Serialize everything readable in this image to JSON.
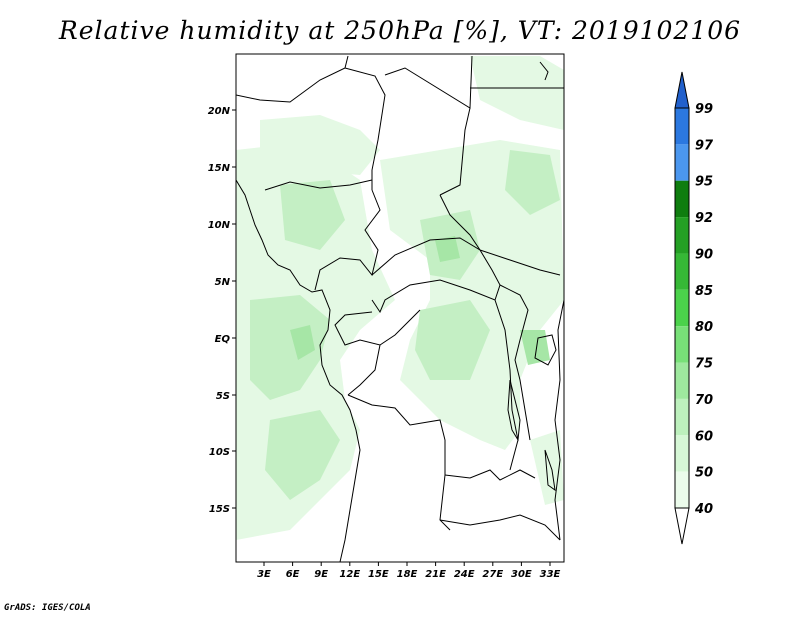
{
  "title": "Relative humidity at 250hPa [%], VT: 2019102106",
  "credit": "GrADS: IGES/COLA",
  "map": {
    "lat_labels": [
      "20N",
      "15N",
      "10N",
      "5N",
      "EQ",
      "5S",
      "10S",
      "15S"
    ],
    "lon_labels": [
      "3E",
      "6E",
      "9E",
      "12E",
      "15E",
      "18E",
      "21E",
      "24E",
      "27E",
      "30E",
      "33E"
    ]
  },
  "colorbar": {
    "levels": [
      "99",
      "97",
      "95",
      "92",
      "90",
      "85",
      "80",
      "75",
      "70",
      "60",
      "50",
      "40"
    ],
    "colors": [
      "#1e5fd0",
      "#2b78e0",
      "#4b97ef",
      "#0f7d0f",
      "#24a024",
      "#36b836",
      "#4bd24b",
      "#78e078",
      "#9ee89e",
      "#bdf0bd",
      "#d6f7d6",
      "#ebfbeb"
    ],
    "top_color": "#2160cc",
    "bottom_color": "#ffffff"
  },
  "humidity_color_light": "#e4f9e4",
  "humidity_color_medium": "#c4efc4",
  "humidity_color_dense": "#a6e6a6"
}
